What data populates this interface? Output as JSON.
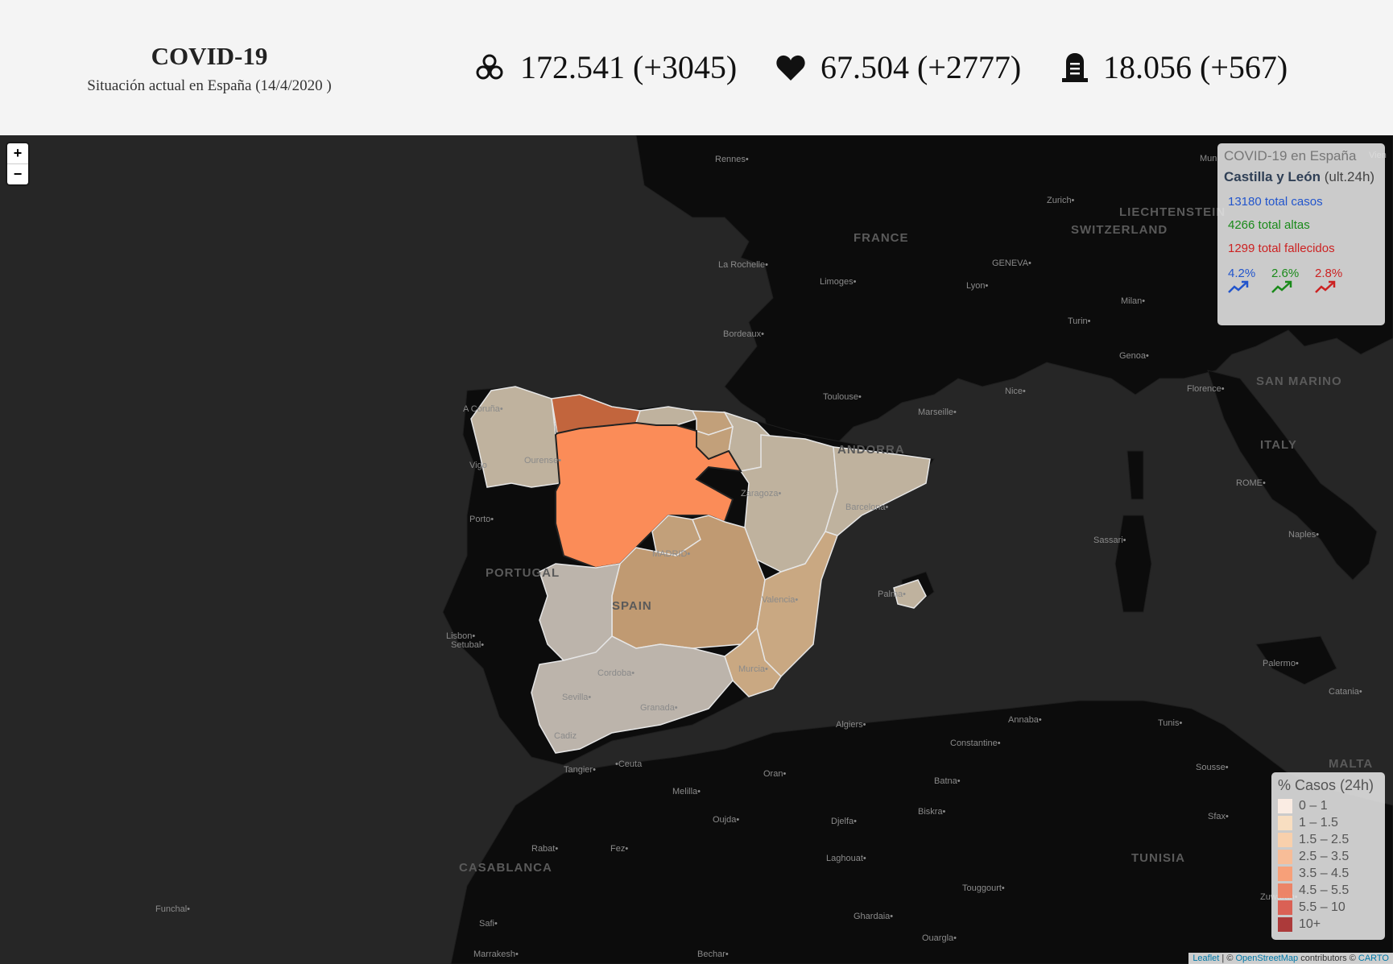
{
  "header": {
    "title": "COVID-19",
    "subtitle": "Situación actual en España (14/4/2020 )",
    "stats": [
      {
        "icon": "biohazard-icon",
        "value": "172.541 (+3045)"
      },
      {
        "icon": "heart-icon",
        "value": "67.504 (+2777)"
      },
      {
        "icon": "tombstone-icon",
        "value": "18.056 (+567)"
      }
    ]
  },
  "zoom": {
    "in": "+",
    "out": "−"
  },
  "info": {
    "heading": "COVID-19 en España",
    "region": "Castilla y León",
    "region_suffix": " (ult.24h)",
    "cases": "13180 total casos",
    "recovered": "4266 total altas",
    "deaths": "1299 total fallecidos",
    "trends": [
      {
        "value": "4.2%",
        "color": "#2255cc",
        "icon": "trending-up-icon"
      },
      {
        "value": "2.6%",
        "color": "#1a8a1a",
        "icon": "trending-up-icon"
      },
      {
        "value": "2.8%",
        "color": "#cc2222",
        "icon": "trending-up-icon"
      }
    ]
  },
  "legend": {
    "title": "% Casos (24h)",
    "items": [
      {
        "label": "0 – 1",
        "color": "#fff0e6"
      },
      {
        "label": "1 – 1.5",
        "color": "#fde0c0"
      },
      {
        "label": "1.5 – 2.5",
        "color": "#fdd0a8"
      },
      {
        "label": "2.5 – 3.5",
        "color": "#fcbb92"
      },
      {
        "label": "3.5 – 4.5",
        "color": "#fc9b70"
      },
      {
        "label": "4.5 – 5.5",
        "color": "#f07c5c"
      },
      {
        "label": "5.5 – 10",
        "color": "#dc5548"
      },
      {
        "label": "10+",
        "color": "#a82a2a"
      }
    ]
  },
  "map_labels": {
    "countries": [
      "FRANCE",
      "SWITZERLAND",
      "LIECHTENSTEIN",
      "ITALY",
      "SAN MARINO",
      "PORTUGAL",
      "SPAIN",
      "ANDORRA",
      "TUNISIA",
      "MALTA",
      "CASABLANCA"
    ],
    "cities": [
      "Rennes",
      "La Rochelle",
      "Limoges",
      "Bordeaux",
      "Toulouse",
      "Marseille",
      "Nice",
      "Lyon",
      "GENEVA",
      "Zurich",
      "Milan",
      "Turin",
      "Genoa",
      "Florence",
      "ROME",
      "Naples",
      "Sassari",
      "Palermo",
      "Catania",
      "Tunis",
      "Sousse",
      "Sfax",
      "Annaba",
      "Constantine",
      "Algiers",
      "Oran",
      "Batna",
      "Biskra",
      "Djelfa",
      "Laghouat",
      "Touggourt",
      "Ghardaia",
      "Ouargla",
      "Oujda",
      "Fez",
      "Rabat",
      "Melilla",
      "Ceuta",
      "Tangier",
      "Safi",
      "Marrakesh",
      "Bechar",
      "Funchal",
      "Zuwarah",
      "A Coruña",
      "Vigo",
      "Ourense",
      "Porto",
      "Lisbon",
      "Setubal",
      "Valencia",
      "Murcia",
      "Granada",
      "Cordoba",
      "Sevilla",
      "Cadiz",
      "Barcelona",
      "Zaragoza",
      "MADRID",
      "Palma",
      "Mun",
      "Vien"
    ]
  },
  "attribution": {
    "leaflet": "Leaflet",
    "sep": " | © ",
    "osm": "OpenStreetMap",
    "mid": " contributors © ",
    "carto": "CARTO"
  }
}
